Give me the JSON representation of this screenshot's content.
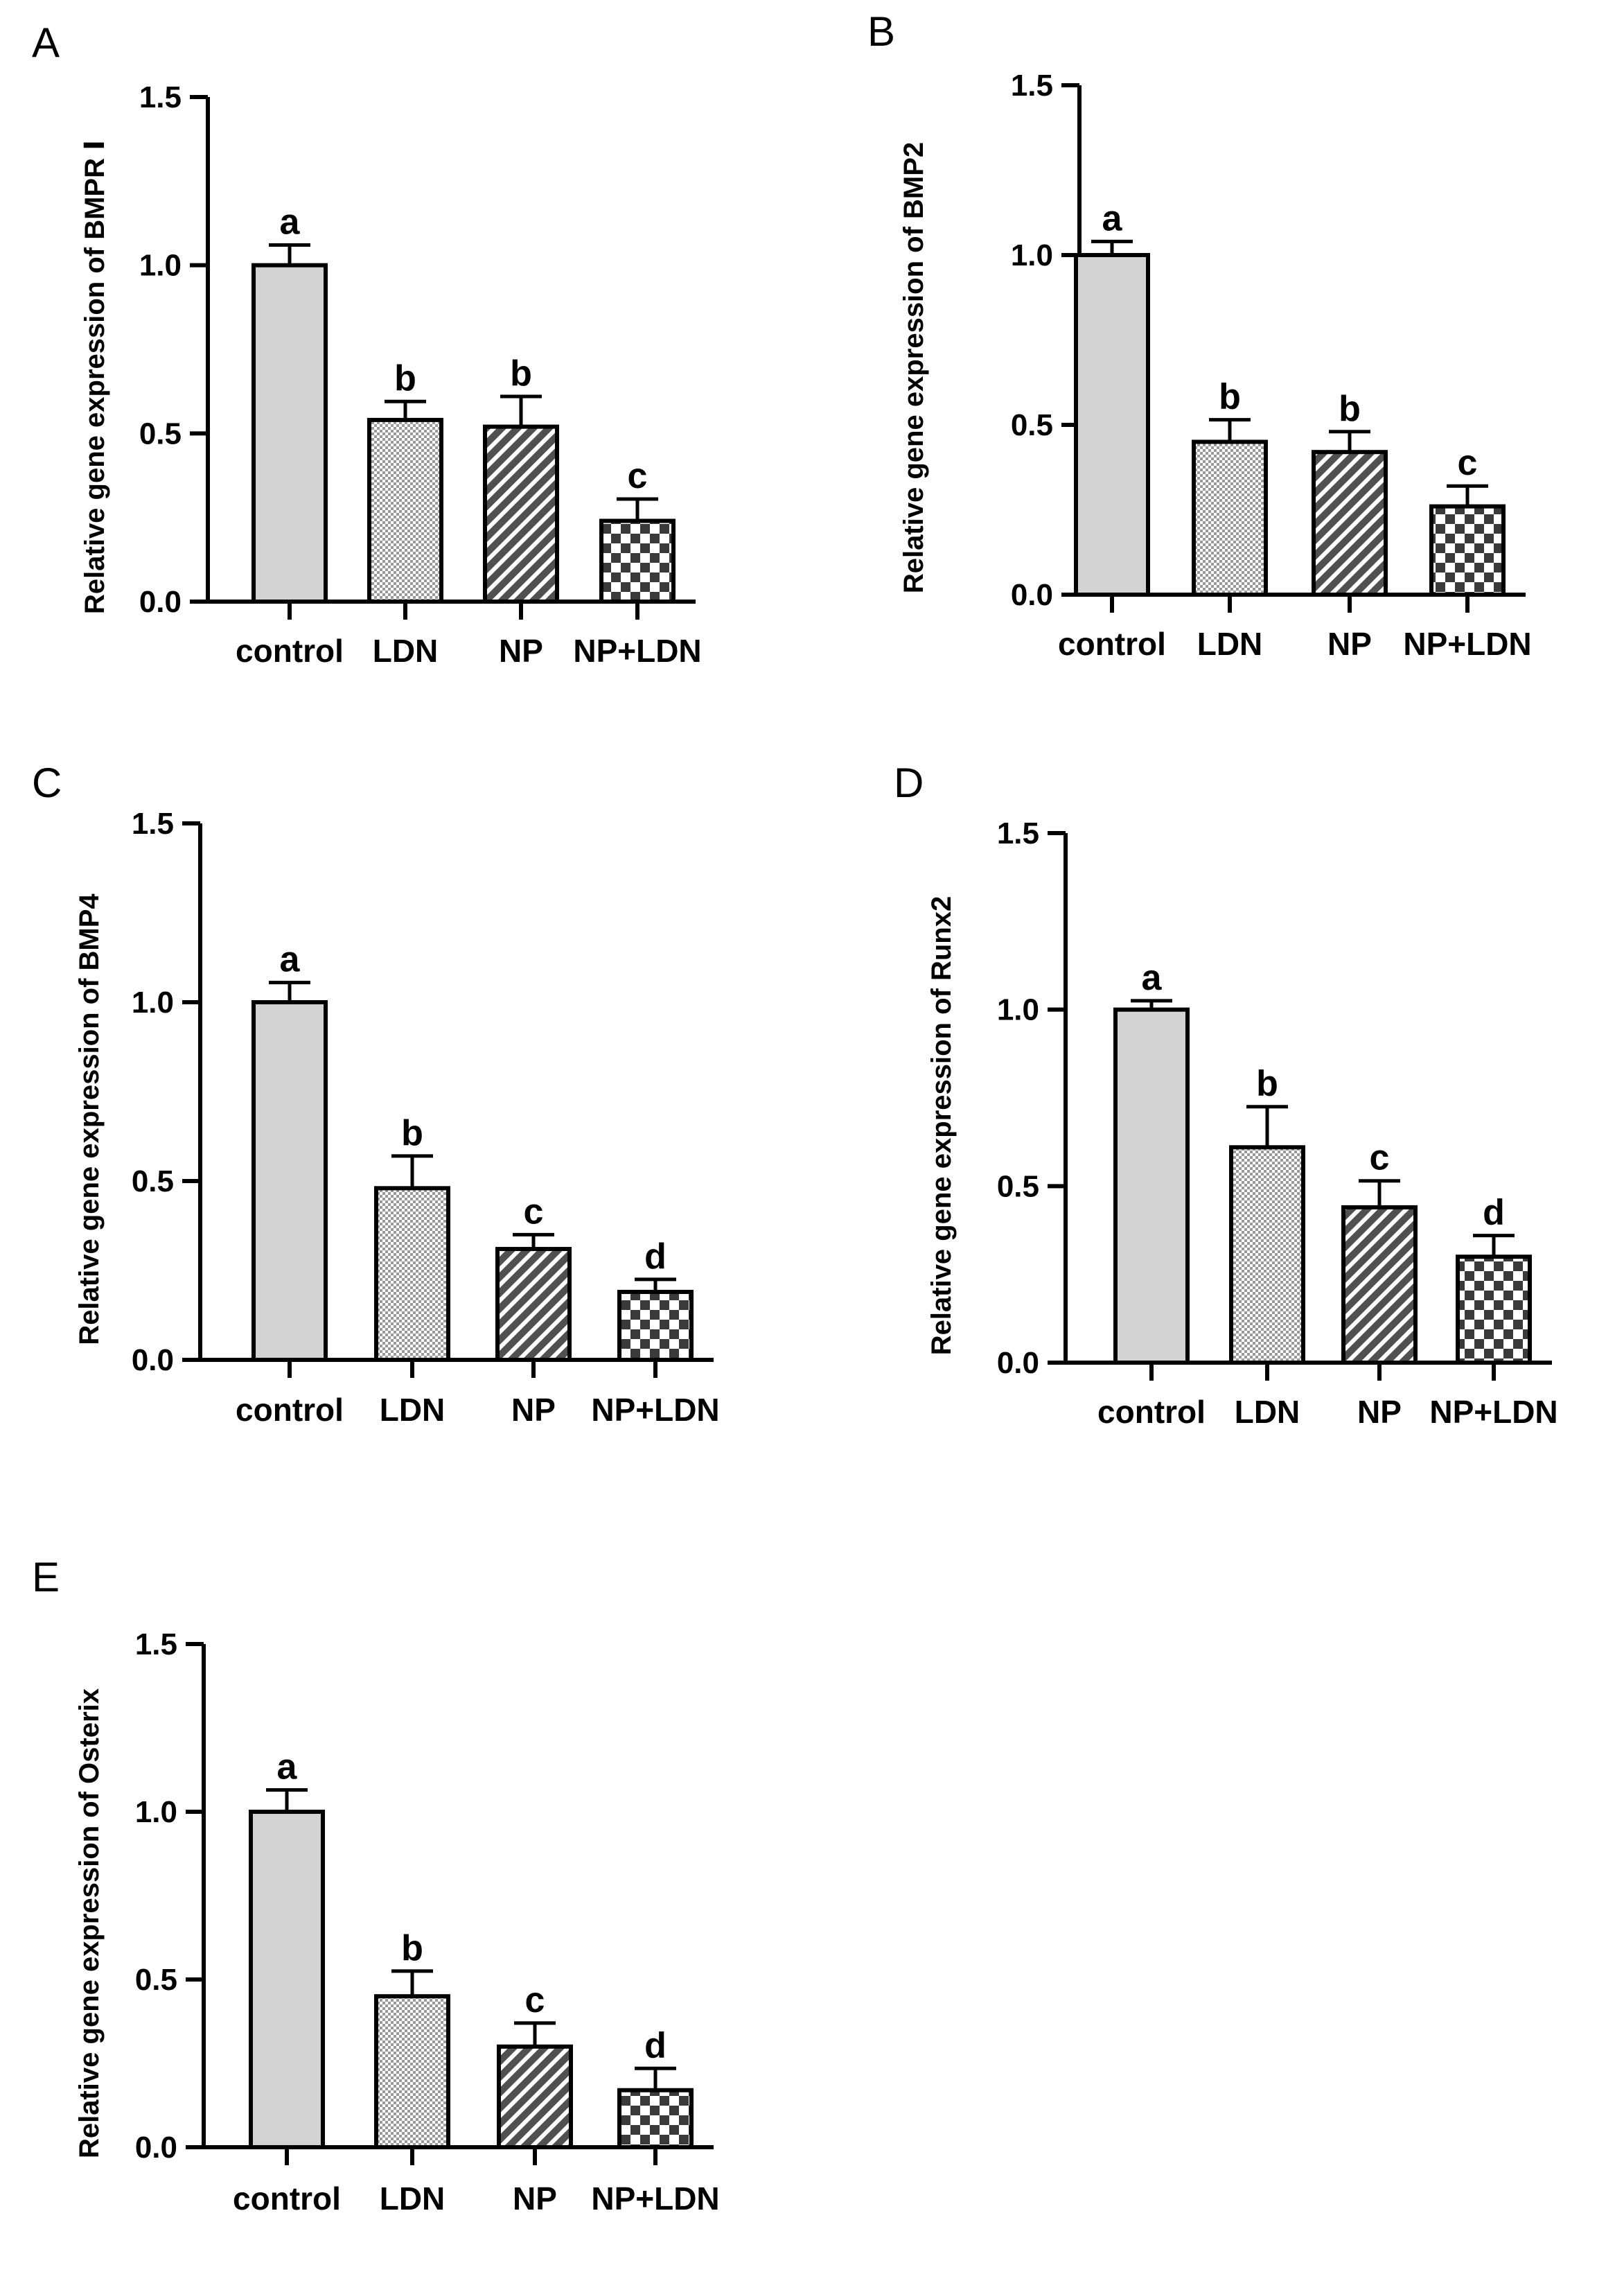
{
  "figure": {
    "panels_count": 5
  },
  "chart_data": [
    {
      "panel": "A",
      "type": "bar",
      "categories": [
        "control",
        "LDN",
        "NP",
        "NP+LDN"
      ],
      "values": [
        1.0,
        0.54,
        0.52,
        0.24
      ],
      "errors": [
        0.06,
        0.055,
        0.09,
        0.065
      ],
      "significance": [
        "a",
        "b",
        "b",
        "c"
      ],
      "ylabel": "Relative gene expression of BMPR Ⅰ",
      "xlabel": "",
      "title": "",
      "ylim": [
        0,
        1.5
      ],
      "yticks": [
        0.0,
        0.5,
        1.0,
        1.5
      ],
      "ytick_labels": [
        "0.0",
        "0.5",
        "1.0",
        "1.5"
      ],
      "fills": [
        "solid",
        "fine-check",
        "diagonal-stripes",
        "checkerboard"
      ],
      "bar_color": "#d3d3d3"
    },
    {
      "panel": "B",
      "type": "bar",
      "categories": [
        "control",
        "LDN",
        "NP",
        "NP+LDN"
      ],
      "values": [
        1.0,
        0.45,
        0.42,
        0.26
      ],
      "errors": [
        0.04,
        0.065,
        0.06,
        0.06
      ],
      "significance": [
        "a",
        "b",
        "b",
        "c"
      ],
      "ylabel": "Relative gene expression of BMP2",
      "xlabel": "",
      "title": "",
      "ylim": [
        0,
        1.5
      ],
      "yticks": [
        0.0,
        0.5,
        1.0,
        1.5
      ],
      "ytick_labels": [
        "0.0",
        "0.5",
        "1.0",
        "1.5"
      ],
      "fills": [
        "solid",
        "fine-check",
        "diagonal-stripes",
        "checkerboard"
      ],
      "bar_color": "#d3d3d3"
    },
    {
      "panel": "C",
      "type": "bar",
      "categories": [
        "control",
        "LDN",
        "NP",
        "NP+LDN"
      ],
      "values": [
        1.0,
        0.48,
        0.31,
        0.19
      ],
      "errors": [
        0.055,
        0.09,
        0.04,
        0.035
      ],
      "significance": [
        "a",
        "b",
        "c",
        "d"
      ],
      "ylabel": "Relative gene expression of BMP4",
      "xlabel": "",
      "title": "",
      "ylim": [
        0,
        1.5
      ],
      "yticks": [
        0.0,
        0.5,
        1.0,
        1.5
      ],
      "ytick_labels": [
        "0.0",
        "0.5",
        "1.0",
        "1.5"
      ],
      "fills": [
        "solid",
        "fine-check",
        "diagonal-stripes",
        "checkerboard"
      ],
      "bar_color": "#d3d3d3"
    },
    {
      "panel": "D",
      "type": "bar",
      "categories": [
        "control",
        "LDN",
        "NP",
        "NP+LDN"
      ],
      "values": [
        1.0,
        0.61,
        0.44,
        0.3
      ],
      "errors": [
        0.025,
        0.115,
        0.075,
        0.06
      ],
      "significance": [
        "a",
        "b",
        "c",
        "d"
      ],
      "ylabel": "Relative gene expression of Runx2",
      "xlabel": "",
      "title": "",
      "ylim": [
        0,
        1.5
      ],
      "yticks": [
        0.0,
        0.5,
        1.0,
        1.5
      ],
      "ytick_labels": [
        "0.0",
        "0.5",
        "1.0",
        "1.5"
      ],
      "fills": [
        "solid",
        "fine-check",
        "diagonal-stripes",
        "checkerboard"
      ],
      "bar_color": "#d3d3d3"
    },
    {
      "panel": "E",
      "type": "bar",
      "categories": [
        "control",
        "LDN",
        "NP",
        "NP+LDN"
      ],
      "values": [
        1.0,
        0.45,
        0.3,
        0.17
      ],
      "errors": [
        0.065,
        0.075,
        0.07,
        0.065
      ],
      "significance": [
        "a",
        "b",
        "c",
        "d"
      ],
      "ylabel": "Relative gene expression of Osterix",
      "xlabel": "",
      "title": "",
      "ylim": [
        0,
        1.5
      ],
      "yticks": [
        0.0,
        0.5,
        1.0,
        1.5
      ],
      "ytick_labels": [
        "0.0",
        "0.5",
        "1.0",
        "1.5"
      ],
      "fills": [
        "solid",
        "fine-check",
        "diagonal-stripes",
        "checkerboard"
      ],
      "bar_color": "#d3d3d3"
    }
  ]
}
